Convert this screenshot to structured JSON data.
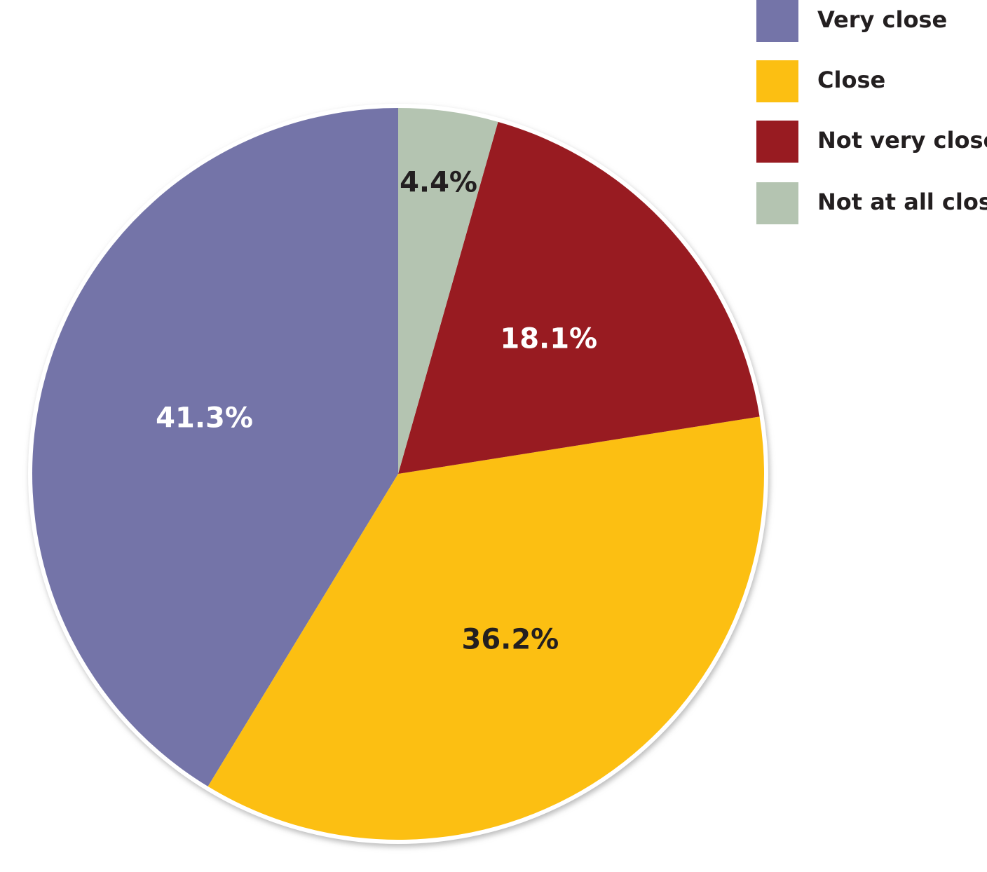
{
  "chart_data": {
    "type": "pie",
    "categories": [
      "Very close",
      "Close",
      "Not very close",
      "Not at all close"
    ],
    "values": [
      41.3,
      36.2,
      18.1,
      4.4
    ],
    "value_labels": [
      "41.3%",
      "36.2%",
      "18.1%",
      "4.4%"
    ],
    "colors": [
      "#7474a8",
      "#fcbf12",
      "#981b21",
      "#b4c4b1"
    ],
    "legend": "top-right"
  }
}
